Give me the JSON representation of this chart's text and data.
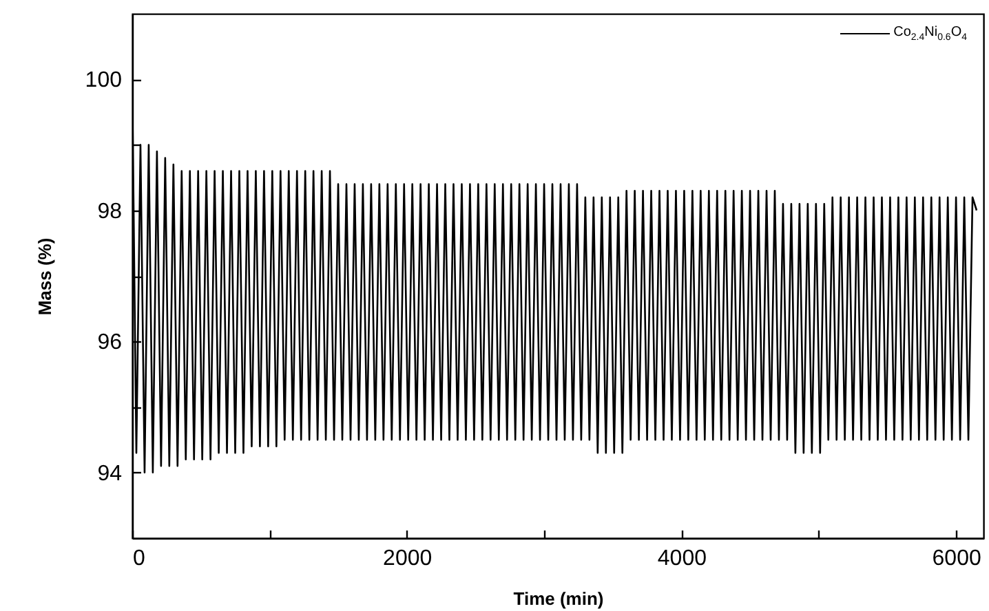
{
  "chart_data": {
    "type": "line",
    "xlabel": "Time (min)",
    "ylabel": "Mass (%)",
    "xlim": [
      0,
      6200
    ],
    "xticks": [
      0,
      {
        "value": 1000,
        "label": null
      },
      2000,
      {
        "value": 3000,
        "label": null
      },
      4000,
      {
        "value": 5000,
        "label": null
      },
      6000
    ],
    "ylim": [
      93,
      101
    ],
    "yticks": [
      94,
      {
        "value": 95,
        "label": null
      },
      96,
      {
        "value": 97,
        "label": null
      },
      98,
      {
        "value": 99,
        "label": null
      },
      100
    ],
    "grid": false,
    "legend": "top right",
    "marker": "none",
    "line_style": "solid",
    "series": [
      {
        "name": "Co$_{2.4}$Ni$_{0.6}$O$_{4}$",
        "color": "#000000",
        "x": [
          0,
          30,
          60,
          90,
          120,
          150,
          180,
          210,
          240,
          270,
          300,
          330,
          360,
          390,
          420,
          450,
          480,
          510,
          540,
          570,
          600,
          630,
          660,
          690,
          720,
          750,
          780,
          810,
          840,
          870,
          900,
          930,
          960,
          990,
          1020,
          1050,
          1080,
          1110,
          1140,
          1170,
          1200,
          1230,
          1260,
          1290,
          1320,
          1350,
          1380,
          1410,
          1440,
          1470,
          1500,
          1530,
          1560,
          1590,
          1620,
          1650,
          1680,
          1710,
          1740,
          1770,
          1800,
          1830,
          1860,
          1890,
          1920,
          1950,
          1980,
          2010,
          2040,
          2070,
          2100,
          2130,
          2160,
          2190,
          2220,
          2250,
          2280,
          2310,
          2340,
          2370,
          2400,
          2430,
          2460,
          2490,
          2520,
          2550,
          2580,
          2610,
          2640,
          2670,
          2700,
          2730,
          2760,
          2790,
          2820,
          2850,
          2880,
          2910,
          2940,
          2970,
          3000,
          3030,
          3060,
          3090,
          3120,
          3150,
          3180,
          3210,
          3240,
          3270,
          3300,
          3330,
          3360,
          3390,
          3420,
          3450,
          3480,
          3510,
          3540,
          3570,
          3600,
          3630,
          3660,
          3690,
          3720,
          3750,
          3780,
          3810,
          3840,
          3870,
          3900,
          3930,
          3960,
          3990,
          4020,
          4050,
          4080,
          4110,
          4140,
          4170,
          4200,
          4230,
          4260,
          4290,
          4320,
          4350,
          4380,
          4410,
          4440,
          4470,
          4500,
          4530,
          4560,
          4590,
          4620,
          4650,
          4680,
          4710,
          4740,
          4770,
          4800,
          4830,
          4860,
          4890,
          4920,
          4950,
          4980,
          5010,
          5040,
          5070,
          5100,
          5130,
          5160,
          5190,
          5220,
          5250,
          5280,
          5310,
          5340,
          5370,
          5400,
          5430,
          5460,
          5490,
          5520,
          5550,
          5580,
          5610,
          5640,
          5670,
          5700,
          5730,
          5760,
          5790,
          5820,
          5850,
          5880,
          5910,
          5940,
          5970,
          6000,
          6030,
          6060,
          6090,
          6120,
          6150
        ],
        "values": [
          99.9,
          94.3,
          99.0,
          94.0,
          99.0,
          94.0,
          98.9,
          94.1,
          98.8,
          94.1,
          98.7,
          94.1,
          98.6,
          94.2,
          98.6,
          94.2,
          98.6,
          94.2,
          98.6,
          94.2,
          98.6,
          94.3,
          98.6,
          94.3,
          98.6,
          94.3,
          98.6,
          94.3,
          98.6,
          94.4,
          98.6,
          94.4,
          98.6,
          94.4,
          98.6,
          94.4,
          98.6,
          94.5,
          98.6,
          94.5,
          98.6,
          94.5,
          98.6,
          94.5,
          98.6,
          94.5,
          98.6,
          94.5,
          98.6,
          94.5,
          98.4,
          94.5,
          98.4,
          94.5,
          98.4,
          94.5,
          98.4,
          94.5,
          98.4,
          94.5,
          98.4,
          94.5,
          98.4,
          94.5,
          98.4,
          94.5,
          98.4,
          94.5,
          98.4,
          94.5,
          98.4,
          94.5,
          98.4,
          94.5,
          98.4,
          94.5,
          98.4,
          94.5,
          98.4,
          94.5,
          98.4,
          94.5,
          98.4,
          94.5,
          98.4,
          94.5,
          98.4,
          94.5,
          98.4,
          94.5,
          98.4,
          94.5,
          98.4,
          94.5,
          98.4,
          94.5,
          98.4,
          94.5,
          98.4,
          94.5,
          98.4,
          94.5,
          98.4,
          94.5,
          98.4,
          94.5,
          98.4,
          94.5,
          98.4,
          94.5,
          98.2,
          94.5,
          98.2,
          94.3,
          98.2,
          94.3,
          98.2,
          94.3,
          98.2,
          94.3,
          98.3,
          94.5,
          98.3,
          94.5,
          98.3,
          94.5,
          98.3,
          94.5,
          98.3,
          94.5,
          98.3,
          94.5,
          98.3,
          94.5,
          98.3,
          94.5,
          98.3,
          94.5,
          98.3,
          94.5,
          98.3,
          94.5,
          98.3,
          94.5,
          98.3,
          94.5,
          98.3,
          94.5,
          98.3,
          94.5,
          98.3,
          94.5,
          98.3,
          94.5,
          98.3,
          94.5,
          98.3,
          94.5,
          98.1,
          94.5,
          98.1,
          94.3,
          98.1,
          94.3,
          98.1,
          94.3,
          98.1,
          94.3,
          98.1,
          94.5,
          98.2,
          94.5,
          98.2,
          94.5,
          98.2,
          94.5,
          98.2,
          94.5,
          98.2,
          94.5,
          98.2,
          94.5,
          98.2,
          94.5,
          98.2,
          94.5,
          98.2,
          94.5,
          98.2,
          94.5,
          98.2,
          94.5,
          98.2,
          94.5,
          98.2,
          94.5,
          98.2,
          94.5,
          98.2,
          94.5,
          98.2,
          94.5,
          98.2,
          94.5,
          98.2,
          98.0
        ]
      }
    ]
  }
}
